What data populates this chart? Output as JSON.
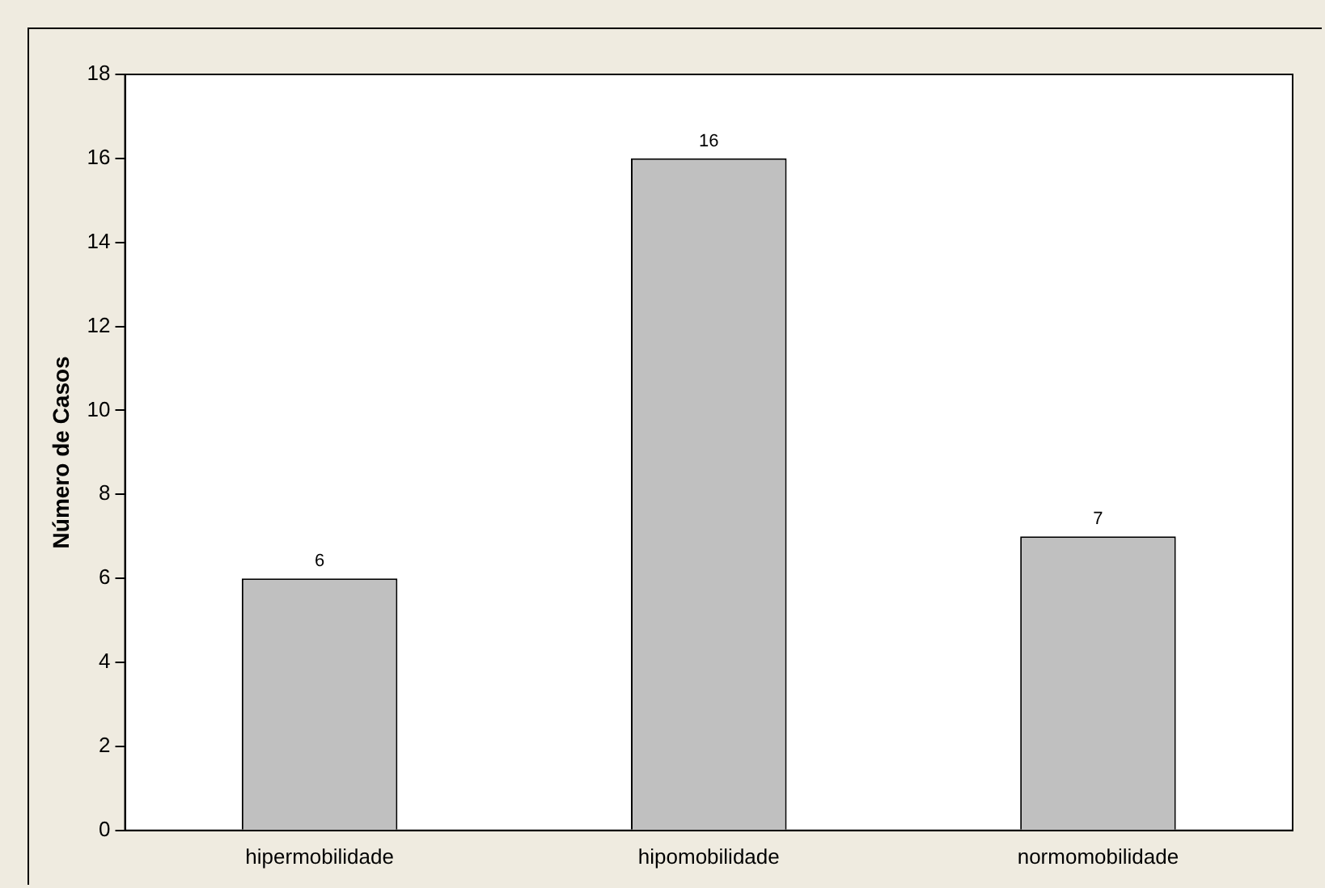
{
  "chart_data": {
    "type": "bar",
    "ylabel": "Número de Casos",
    "categories": [
      "hipermobilidade",
      "hipomobilidade",
      "normomobilidade"
    ],
    "values": [
      6,
      16,
      7
    ],
    "color": "#c0c0c0",
    "ylim": [
      0,
      18
    ],
    "yticks": [
      0,
      2,
      4,
      6,
      8,
      10,
      12,
      14,
      16,
      18
    ],
    "grid": false,
    "legend": false,
    "data_labels": true
  }
}
